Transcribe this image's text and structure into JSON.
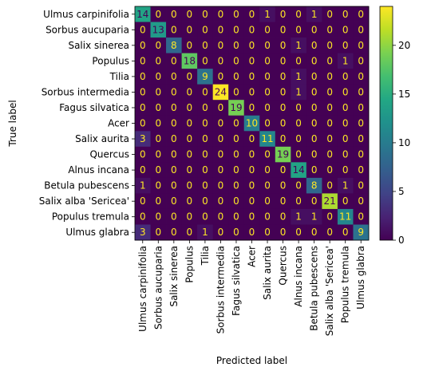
{
  "chart_data": {
    "type": "heatmap",
    "xlabel": "Predicted label",
    "ylabel": "True label",
    "colormap": "viridis",
    "categories": [
      "Ulmus carpinifolia",
      "Sorbus aucuparia",
      "Salix sinerea",
      "Populus",
      "Tilia",
      "Sorbus intermedia",
      "Fagus silvatica",
      "Acer",
      "Salix aurita",
      "Quercus",
      "Alnus incana",
      "Betula pubescens",
      "Salix alba 'Sericea'",
      "Populus tremula",
      "Ulmus glabra"
    ],
    "matrix": [
      [
        14,
        0,
        0,
        0,
        0,
        0,
        0,
        0,
        1,
        0,
        0,
        1,
        0,
        0,
        0
      ],
      [
        0,
        13,
        0,
        0,
        0,
        0,
        0,
        0,
        0,
        0,
        0,
        0,
        0,
        0,
        0
      ],
      [
        0,
        0,
        8,
        0,
        0,
        0,
        0,
        0,
        0,
        0,
        1,
        0,
        0,
        0,
        0
      ],
      [
        0,
        0,
        0,
        18,
        0,
        0,
        0,
        0,
        0,
        0,
        0,
        0,
        0,
        1,
        0
      ],
      [
        0,
        0,
        0,
        0,
        9,
        0,
        0,
        0,
        0,
        0,
        1,
        0,
        0,
        0,
        0
      ],
      [
        0,
        0,
        0,
        0,
        0,
        24,
        0,
        0,
        0,
        0,
        1,
        0,
        0,
        0,
        0
      ],
      [
        0,
        0,
        0,
        0,
        0,
        0,
        19,
        0,
        0,
        0,
        0,
        0,
        0,
        0,
        0
      ],
      [
        0,
        0,
        0,
        0,
        0,
        0,
        0,
        10,
        0,
        0,
        0,
        0,
        0,
        0,
        0
      ],
      [
        3,
        0,
        0,
        0,
        0,
        0,
        0,
        0,
        11,
        0,
        0,
        0,
        0,
        0,
        0
      ],
      [
        0,
        0,
        0,
        0,
        0,
        0,
        0,
        0,
        0,
        19,
        0,
        0,
        0,
        0,
        0
      ],
      [
        0,
        0,
        0,
        0,
        0,
        0,
        0,
        0,
        0,
        0,
        14,
        0,
        0,
        0,
        0
      ],
      [
        1,
        0,
        0,
        0,
        0,
        0,
        0,
        0,
        0,
        0,
        0,
        8,
        0,
        1,
        0
      ],
      [
        0,
        0,
        0,
        0,
        0,
        0,
        0,
        0,
        0,
        0,
        0,
        0,
        21,
        0,
        0
      ],
      [
        0,
        0,
        0,
        0,
        0,
        0,
        0,
        0,
        0,
        0,
        1,
        1,
        0,
        11,
        0
      ],
      [
        3,
        0,
        0,
        0,
        1,
        0,
        0,
        0,
        0,
        0,
        0,
        0,
        0,
        0,
        9
      ]
    ],
    "colorbar": {
      "min": 0,
      "max": 24,
      "ticks": [
        0,
        5,
        10,
        15,
        20
      ]
    },
    "grid": false
  }
}
